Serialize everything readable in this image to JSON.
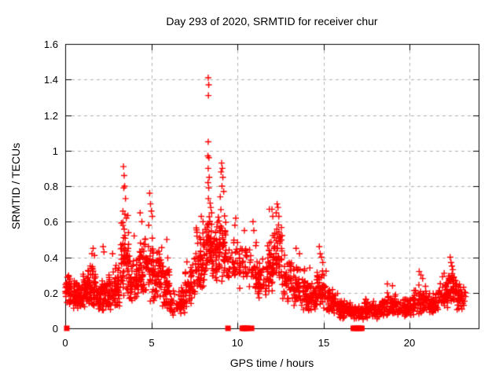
{
  "chart_data": {
    "type": "scatter",
    "title": "Day 293 of 2020, SRMTID for receiver chur",
    "xlabel": "GPS time / hours",
    "ylabel": "SRMTID / TECUs",
    "xlim": [
      0,
      24
    ],
    "ylim": [
      0,
      1.6
    ],
    "xticks": [
      0,
      5,
      10,
      15,
      20
    ],
    "xtick_labels": [
      "0",
      "5",
      "10",
      "15",
      "20"
    ],
    "yticks": [
      0,
      0.2,
      0.4,
      0.6,
      0.8,
      1,
      1.2,
      1.4,
      1.6
    ],
    "ytick_labels": [
      "0",
      "0.2",
      "0.4",
      "0.6",
      "0.8",
      "1",
      "1.2",
      "1.4",
      "1.6"
    ],
    "grid": {
      "show": true,
      "color": "#b0b0b0",
      "dash": [
        4,
        4
      ]
    },
    "colors": {
      "points": "#ff0000",
      "axis": "#000000",
      "text": "#000000",
      "background": "#ffffff"
    },
    "legend": "none",
    "series": [
      {
        "name": "srmtid",
        "marker": "plus",
        "bin_format": [
          "x_start_hour",
          "x_end_hour",
          "point_count",
          "y_min_tecu",
          "y_max_tecu"
        ],
        "density_bins": [
          [
            0.0,
            0.3,
            36,
            0.13,
            0.33
          ],
          [
            0.3,
            0.8,
            48,
            0.1,
            0.28
          ],
          [
            0.8,
            1.3,
            52,
            0.11,
            0.36
          ],
          [
            1.3,
            1.8,
            52,
            0.1,
            0.38
          ],
          [
            1.8,
            2.3,
            50,
            0.08,
            0.3
          ],
          [
            2.3,
            2.85,
            46,
            0.09,
            0.33
          ],
          [
            2.85,
            3.2,
            40,
            0.1,
            0.38
          ],
          [
            3.2,
            3.7,
            62,
            0.15,
            0.66
          ],
          [
            3.7,
            4.2,
            48,
            0.12,
            0.45
          ],
          [
            4.2,
            4.65,
            48,
            0.14,
            0.55
          ],
          [
            4.65,
            5.2,
            55,
            0.15,
            0.55
          ],
          [
            5.2,
            5.65,
            45,
            0.14,
            0.48
          ],
          [
            5.65,
            6.05,
            42,
            0.1,
            0.4
          ],
          [
            6.05,
            6.95,
            65,
            0.07,
            0.24
          ],
          [
            6.95,
            7.55,
            50,
            0.1,
            0.42
          ],
          [
            7.55,
            8.1,
            60,
            0.18,
            0.6
          ],
          [
            8.1,
            8.5,
            46,
            0.28,
            0.72
          ],
          [
            8.5,
            8.85,
            42,
            0.25,
            0.62
          ],
          [
            8.85,
            9.35,
            58,
            0.25,
            0.7
          ],
          [
            9.35,
            9.65,
            14,
            0.28,
            0.5
          ],
          [
            9.65,
            10.15,
            32,
            0.22,
            0.52
          ],
          [
            10.15,
            10.65,
            24,
            0.26,
            0.5
          ],
          [
            10.65,
            11.15,
            30,
            0.2,
            0.52
          ],
          [
            11.15,
            11.65,
            35,
            0.15,
            0.42
          ],
          [
            11.65,
            12.05,
            42,
            0.18,
            0.55
          ],
          [
            12.05,
            12.6,
            58,
            0.28,
            0.62
          ],
          [
            12.6,
            13.15,
            50,
            0.14,
            0.42
          ],
          [
            13.15,
            13.95,
            60,
            0.1,
            0.35
          ],
          [
            13.95,
            14.55,
            55,
            0.08,
            0.28
          ],
          [
            14.55,
            15.2,
            60,
            0.1,
            0.34
          ],
          [
            15.2,
            15.85,
            55,
            0.08,
            0.24
          ],
          [
            15.85,
            16.55,
            60,
            0.05,
            0.17
          ],
          [
            16.55,
            17.35,
            58,
            0.04,
            0.14
          ],
          [
            17.35,
            18.25,
            70,
            0.05,
            0.17
          ],
          [
            18.25,
            19.25,
            75,
            0.06,
            0.21
          ],
          [
            19.25,
            20.25,
            75,
            0.06,
            0.19
          ],
          [
            20.25,
            20.95,
            55,
            0.08,
            0.26
          ],
          [
            20.95,
            21.65,
            55,
            0.07,
            0.21
          ],
          [
            21.65,
            22.25,
            50,
            0.1,
            0.27
          ],
          [
            22.25,
            22.75,
            46,
            0.12,
            0.33
          ],
          [
            22.75,
            23.25,
            34,
            0.1,
            0.27
          ]
        ],
        "peak_points": [
          [
            1.55,
            0.42
          ],
          [
            1.62,
            0.45
          ],
          [
            1.7,
            0.41
          ],
          [
            2.2,
            0.46
          ],
          [
            2.25,
            0.43
          ],
          [
            2.75,
            0.42
          ],
          [
            3.38,
            0.91
          ],
          [
            3.42,
            0.86
          ],
          [
            3.45,
            0.8
          ],
          [
            3.4,
            0.79
          ],
          [
            3.5,
            0.73
          ],
          [
            3.35,
            0.66
          ],
          [
            3.55,
            0.62
          ],
          [
            4.0,
            0.52
          ],
          [
            4.35,
            0.65
          ],
          [
            4.45,
            0.6
          ],
          [
            4.9,
            0.76
          ],
          [
            4.95,
            0.7
          ],
          [
            5.0,
            0.66
          ],
          [
            5.05,
            0.63
          ],
          [
            4.85,
            0.58
          ],
          [
            5.9,
            0.5
          ],
          [
            7.9,
            0.63
          ],
          [
            8.0,
            0.6
          ],
          [
            8.3,
            1.41
          ],
          [
            8.33,
            1.37
          ],
          [
            8.31,
            1.31
          ],
          [
            8.3,
            1.05
          ],
          [
            8.28,
            0.97
          ],
          [
            8.34,
            0.96
          ],
          [
            8.3,
            0.9
          ],
          [
            8.36,
            0.85
          ],
          [
            8.29,
            0.82
          ],
          [
            8.33,
            0.79
          ],
          [
            8.31,
            0.73
          ],
          [
            8.45,
            0.68
          ],
          [
            8.5,
            0.65
          ],
          [
            9.08,
            0.93
          ],
          [
            9.12,
            0.9
          ],
          [
            9.05,
            0.88
          ],
          [
            9.15,
            0.85
          ],
          [
            9.1,
            0.8
          ],
          [
            9.2,
            0.77
          ],
          [
            9.0,
            0.74
          ],
          [
            9.9,
            0.62
          ],
          [
            9.85,
            0.58
          ],
          [
            10.4,
            0.55
          ],
          [
            10.9,
            0.6
          ],
          [
            10.95,
            0.55
          ],
          [
            11.85,
            0.67
          ],
          [
            12.0,
            0.67
          ],
          [
            12.05,
            0.63
          ],
          [
            12.3,
            0.7
          ],
          [
            12.35,
            0.68
          ],
          [
            12.25,
            0.65
          ],
          [
            12.4,
            0.63
          ],
          [
            13.4,
            0.45
          ],
          [
            13.6,
            0.42
          ],
          [
            14.2,
            0.34
          ],
          [
            14.75,
            0.46
          ],
          [
            14.8,
            0.42
          ],
          [
            14.88,
            0.4
          ],
          [
            14.95,
            0.37
          ],
          [
            18.7,
            0.25
          ],
          [
            19.0,
            0.24
          ],
          [
            20.55,
            0.32
          ],
          [
            20.65,
            0.3
          ],
          [
            20.75,
            0.28
          ],
          [
            21.9,
            0.29
          ],
          [
            22.0,
            0.31
          ],
          [
            22.35,
            0.4
          ],
          [
            22.4,
            0.37
          ],
          [
            22.45,
            0.35
          ],
          [
            22.5,
            0.33
          ]
        ]
      },
      {
        "name": "zero_value_markers",
        "marker": "filled-square",
        "points": [
          [
            0.09,
            0
          ],
          [
            9.45,
            0
          ],
          [
            10.28,
            0
          ],
          [
            10.36,
            0
          ],
          [
            10.44,
            0
          ],
          [
            10.52,
            0
          ],
          [
            10.6,
            0
          ],
          [
            10.82,
            0
          ],
          [
            16.72,
            0
          ],
          [
            16.82,
            0
          ],
          [
            16.92,
            0
          ],
          [
            17.02,
            0
          ],
          [
            17.12,
            0
          ],
          [
            17.22,
            0
          ]
        ]
      }
    ]
  }
}
